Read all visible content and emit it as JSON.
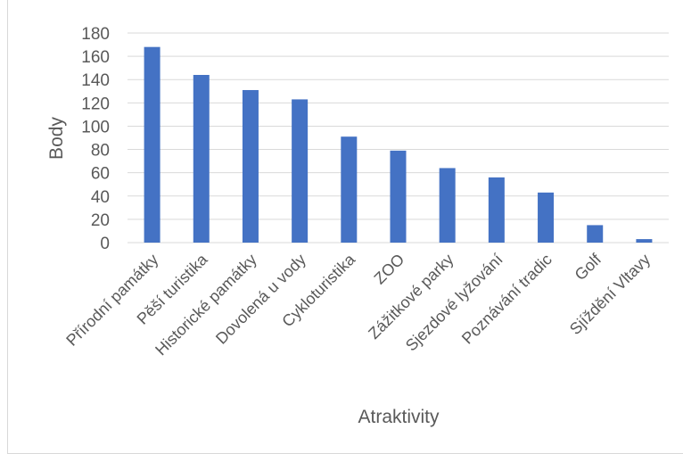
{
  "chart_data": {
    "type": "bar",
    "title": "",
    "xlabel": "Atraktivity",
    "ylabel": "Body",
    "ylim": [
      0,
      180
    ],
    "yticks": [
      0,
      20,
      40,
      60,
      80,
      100,
      120,
      140,
      160,
      180
    ],
    "grid": true,
    "legend": "none",
    "color": "#4472c4",
    "categories": [
      "Přírodní památky",
      "Pěší turistika",
      "Historické památky",
      "Dovolená u vody",
      "Cykloturistika",
      "ZOO",
      "Zážitkové parky",
      "Sjezdové lyžování",
      "Poznávání tradic",
      "Golf",
      "Sjíždění Vltavy"
    ],
    "values": [
      168,
      144,
      131,
      123,
      91,
      79,
      64,
      56,
      43,
      15,
      3
    ]
  }
}
